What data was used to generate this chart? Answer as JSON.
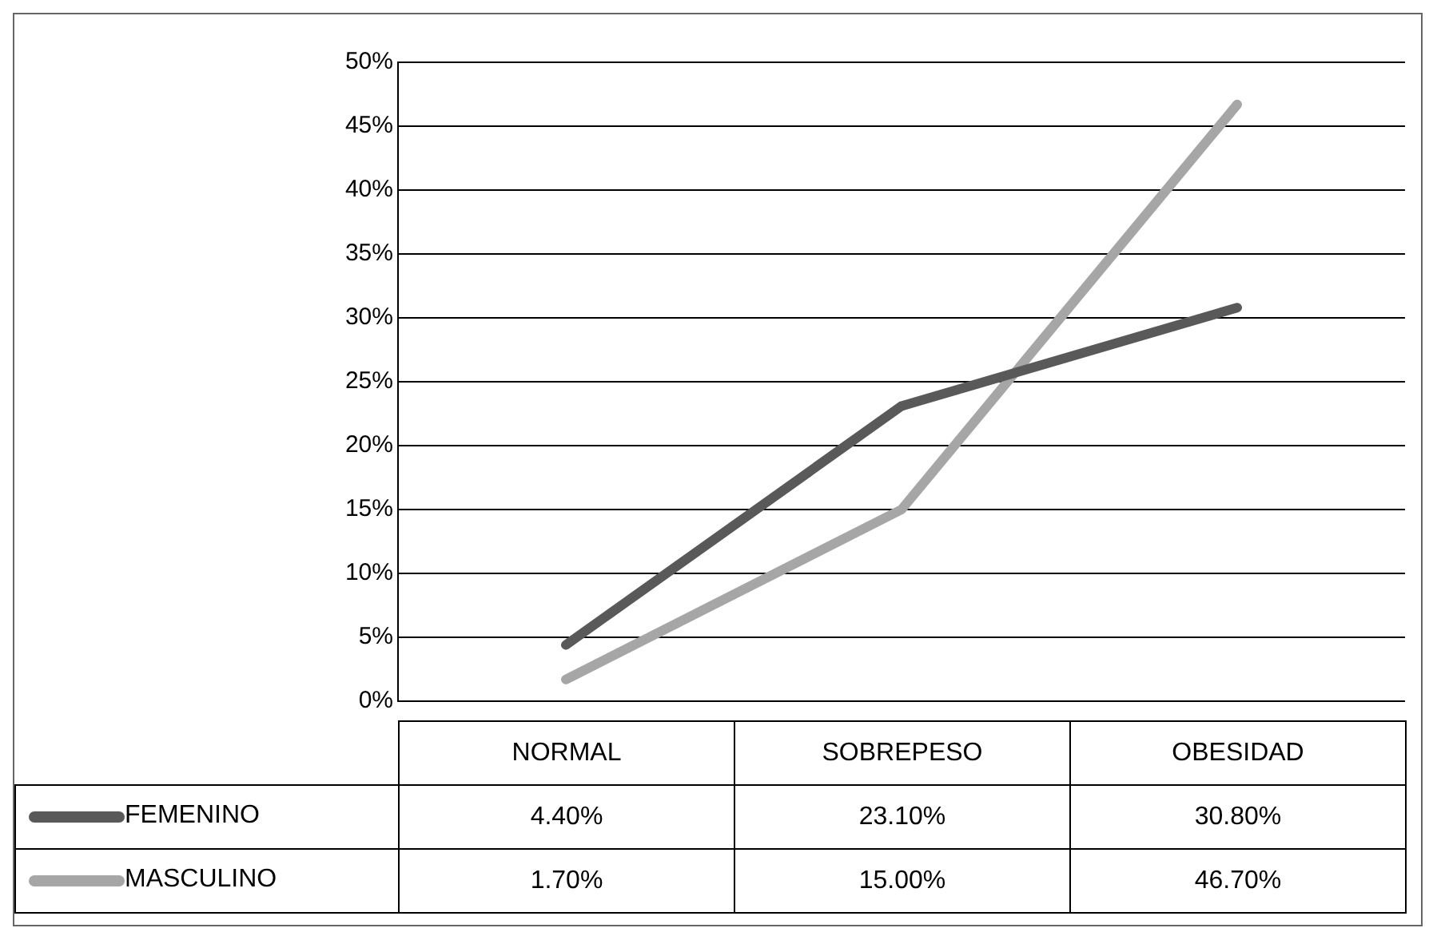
{
  "chart_data": {
    "type": "line",
    "categories": [
      "NORMAL",
      "SOBREPESO",
      "OBESIDAD"
    ],
    "series": [
      {
        "name": "FEMENINO",
        "color": "#595959",
        "values": [
          4.4,
          23.1,
          30.8
        ],
        "value_labels": [
          "4.40%",
          "23.10%",
          "30.80%"
        ]
      },
      {
        "name": "MASCULINO",
        "color": "#a6a6a6",
        "values": [
          1.7,
          15.0,
          46.7
        ],
        "value_labels": [
          "1.70%",
          "15.00%",
          "46.70%"
        ]
      }
    ],
    "ylim": [
      0,
      50
    ],
    "yticks": [
      {
        "value": 0,
        "label": "0%"
      },
      {
        "value": 5,
        "label": "5%"
      },
      {
        "value": 10,
        "label": "10%"
      },
      {
        "value": 15,
        "label": "15%"
      },
      {
        "value": 20,
        "label": "20%"
      },
      {
        "value": 25,
        "label": "25%"
      },
      {
        "value": 30,
        "label": "30%"
      },
      {
        "value": 35,
        "label": "35%"
      },
      {
        "value": 40,
        "label": "40%"
      },
      {
        "value": 45,
        "label": "45%"
      },
      {
        "value": 50,
        "label": "50%"
      }
    ],
    "grid": "y",
    "legend": "bottom",
    "marker": "none",
    "line_style": "solid"
  }
}
